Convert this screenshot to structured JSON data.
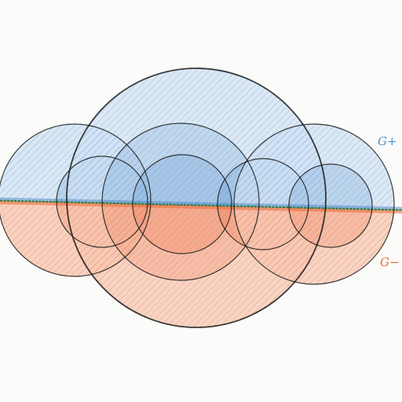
{
  "labels": {
    "g_plus": "G+",
    "g_minus": "G−"
  },
  "colors": {
    "background": "#fbfbfa",
    "blue_region": "#4f8fcf",
    "orange_region": "#ec6a3a",
    "boundary_green": "#2e7d32",
    "outline": "#1a1a1a",
    "g_plus_label": "#4a8fd0",
    "g_minus_label": "#e46a2f"
  }
}
